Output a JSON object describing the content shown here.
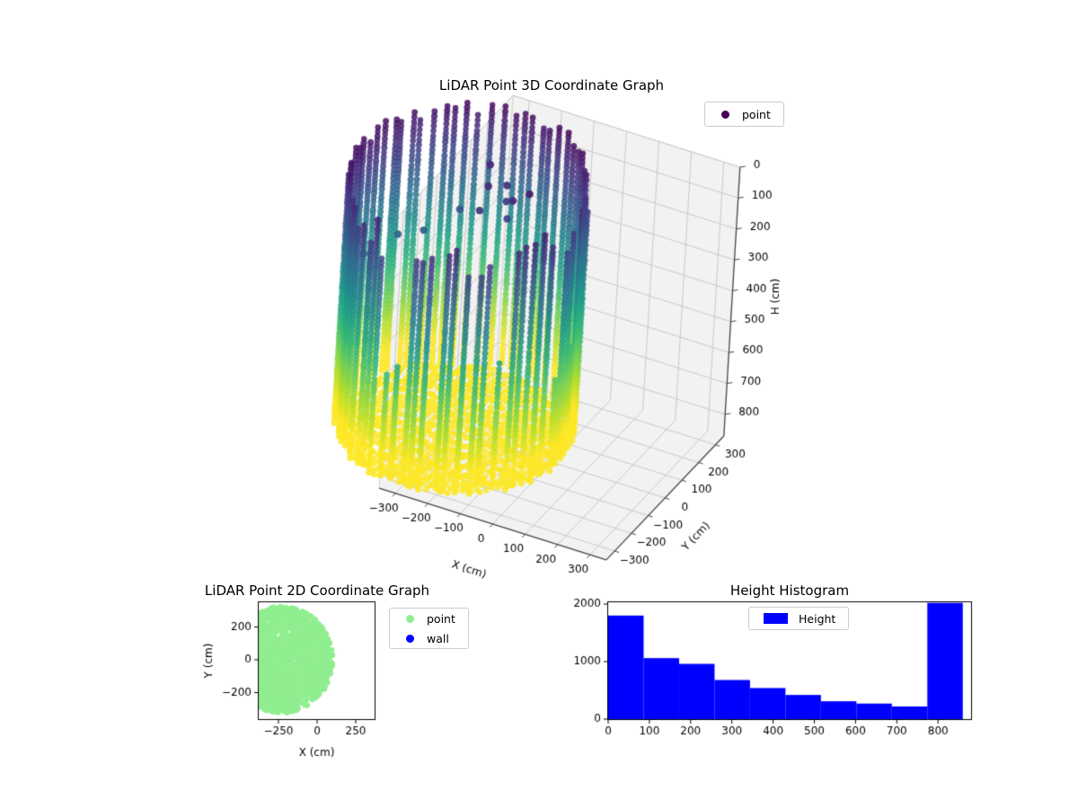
{
  "figure": {
    "background": "#ffffff"
  },
  "colors": {
    "pane": "#f2f2f2",
    "grid3d": "#c9c9c9",
    "box_edge": "#cfcfcf",
    "axis_edge": "#444444",
    "spine": "#000000",
    "text": "#000000",
    "legend_border": "#cccccc"
  },
  "viridis_stops": [
    [
      0.0,
      "#440154"
    ],
    [
      0.1,
      "#482878"
    ],
    [
      0.2,
      "#3e4989"
    ],
    [
      0.3,
      "#31688e"
    ],
    [
      0.4,
      "#26828e"
    ],
    [
      0.5,
      "#1f9e89"
    ],
    [
      0.6,
      "#35b779"
    ],
    [
      0.7,
      "#6ece58"
    ],
    [
      0.8,
      "#b5de2b"
    ],
    [
      0.9,
      "#fde725"
    ],
    [
      1.0,
      "#fde725"
    ]
  ],
  "chart_data": [
    {
      "id": "lidar3d",
      "type": "scatter",
      "projection": "3d",
      "title": "LiDAR Point 3D Coordinate Graph",
      "xlabel": "X (cm)",
      "ylabel": "Y (cm)",
      "zlabel": "H (cm)",
      "xticks": [
        -300,
        -200,
        -100,
        0,
        100,
        200,
        300
      ],
      "yticks": [
        -300,
        -200,
        -100,
        0,
        100,
        200,
        300
      ],
      "zticks": [
        0,
        100,
        200,
        300,
        400,
        500,
        600,
        700,
        800
      ],
      "xlim": [
        -350,
        350
      ],
      "ylim": [
        -350,
        350
      ],
      "zlim": [
        0,
        870
      ],
      "z_axis_inverted": true,
      "grid": true,
      "legend": [
        {
          "label": "point",
          "color": "#440154"
        }
      ],
      "point_cloud": {
        "shape": "cylindrical-room-scan",
        "color_by": "height-viridis",
        "center_xy": [
          -225,
          0
        ],
        "radius_cm": 325,
        "wall_columns": 64,
        "wall_top_h_back_cm": [
          18,
          65
        ],
        "wall_top_h_front_cm": [
          55,
          165
        ],
        "wall_point_spacing_cm": 14,
        "floor_h_cm": 860,
        "floor_grid_spacing_cm": 18,
        "noise_points_xyh": [
          [
            -194,
            58,
            100
          ],
          [
            -165,
            115,
            120
          ],
          [
            -150,
            85,
            150
          ],
          [
            -125,
            45,
            175
          ],
          [
            -235,
            148,
            95
          ],
          [
            -282,
            70,
            210
          ],
          [
            -340,
            -30,
            240
          ],
          [
            -402,
            -62,
            255
          ],
          [
            -455,
            -160,
            280
          ],
          [
            -180,
            -18,
            130
          ],
          [
            -95,
            12,
            88
          ],
          [
            -60,
            42,
            72
          ]
        ]
      }
    },
    {
      "id": "lidar2d",
      "type": "scatter",
      "title": "LiDAR Point 2D Coordinate Graph",
      "xlabel": "X (cm)",
      "ylabel": "Y (cm)",
      "xticks": [
        -250,
        0,
        250
      ],
      "yticks": [
        -200,
        0,
        200
      ],
      "xlim": [
        -384,
        378
      ],
      "ylim": [
        -367,
        356
      ],
      "series": [
        {
          "name": "point",
          "color": "#90ee90",
          "shape": "disc",
          "center": [
            -225,
            0
          ],
          "radius": 325,
          "n_dots": 1700
        },
        {
          "name": "wall",
          "color": "#0000ff",
          "points": []
        }
      ]
    },
    {
      "id": "height_hist",
      "type": "bar",
      "title": "Height Histogram",
      "legend": [
        {
          "label": "Height",
          "color": "#0000ff"
        }
      ],
      "bar_color": "#0000ff",
      "bin_start": 0,
      "bin_width": 86,
      "categories": [
        "0-86",
        "86-172",
        "172-258",
        "258-344",
        "344-430",
        "430-516",
        "516-602",
        "602-688",
        "688-774",
        "774-860"
      ],
      "values": [
        1800,
        1060,
        960,
        680,
        540,
        420,
        310,
        270,
        220,
        2020
      ],
      "xticks": [
        0,
        100,
        200,
        300,
        400,
        500,
        600,
        700,
        800
      ],
      "yticks": [
        0,
        1000,
        2000
      ],
      "xlim": [
        0,
        885
      ],
      "ylim": [
        0,
        2070
      ]
    }
  ]
}
